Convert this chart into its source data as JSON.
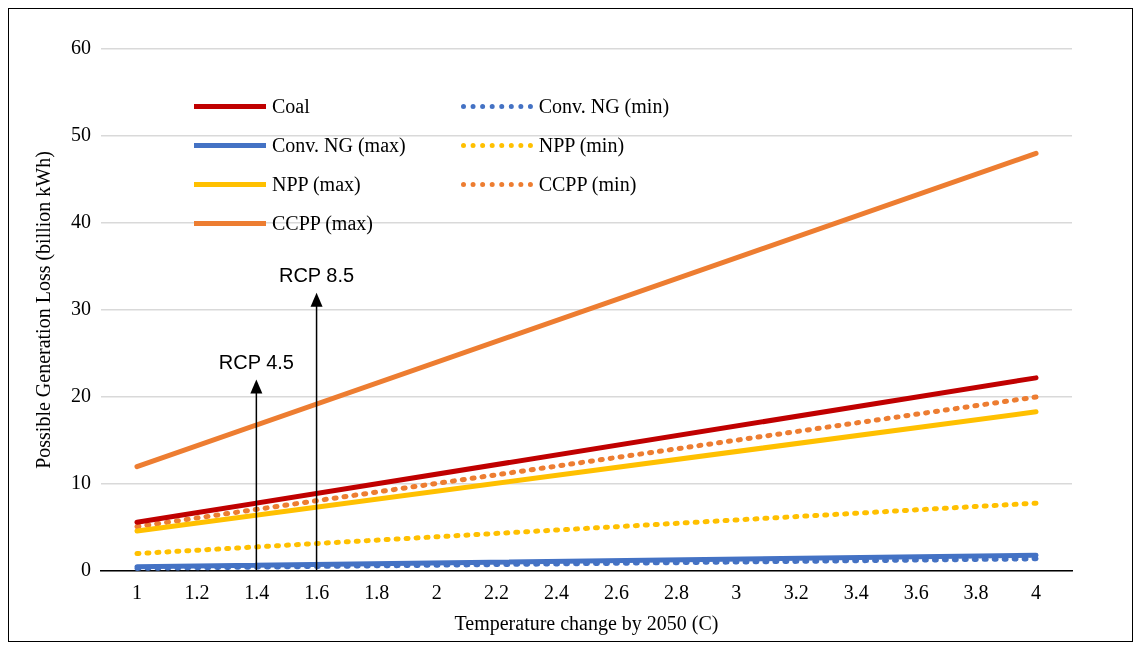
{
  "chart_data": {
    "type": "line",
    "xlabel": "Temperature change by 2050 (C)",
    "ylabel": "Possible Generation Loss (billion kWh)",
    "x": [
      1,
      4
    ],
    "series": [
      {
        "name": "Coal",
        "color": "#c00000",
        "values": [
          5.6,
          22.2
        ],
        "line_style": "solid"
      },
      {
        "name": "Conv. NG (max)",
        "color": "#4472c4",
        "values": [
          0.5,
          1.8
        ],
        "line_style": "solid"
      },
      {
        "name": "NPP (max)",
        "color": "#ffc000",
        "values": [
          4.6,
          18.3
        ],
        "line_style": "solid"
      },
      {
        "name": "CCPP (max)",
        "color": "#ed7d31",
        "values": [
          12,
          48
        ],
        "line_style": "solid"
      },
      {
        "name": "Conv. NG (min)",
        "color": "#4472c4",
        "values": [
          0.3,
          1.4
        ],
        "line_style": "dotted"
      },
      {
        "name": "NPP (min)",
        "color": "#ffc000",
        "values": [
          2,
          7.8
        ],
        "line_style": "dotted"
      },
      {
        "name": "CCPP (min)",
        "color": "#ed7d31",
        "values": [
          5.1,
          20
        ],
        "line_style": "dotted"
      }
    ],
    "xlim": [
      0.88,
      4.12
    ],
    "xticks": [
      1,
      1.2,
      1.4,
      1.6,
      1.8,
      2,
      2.2,
      2.4,
      2.6,
      2.8,
      3,
      3.2,
      3.4,
      3.6,
      3.8,
      4
    ],
    "ylim": [
      0,
      60
    ],
    "yticks": [
      0,
      10,
      20,
      30,
      40,
      50,
      60
    ],
    "annotations": [
      "RCP 4.5",
      "RCP 8.5"
    ],
    "grid": "y",
    "legend": "top left",
    "marker": "none"
  }
}
